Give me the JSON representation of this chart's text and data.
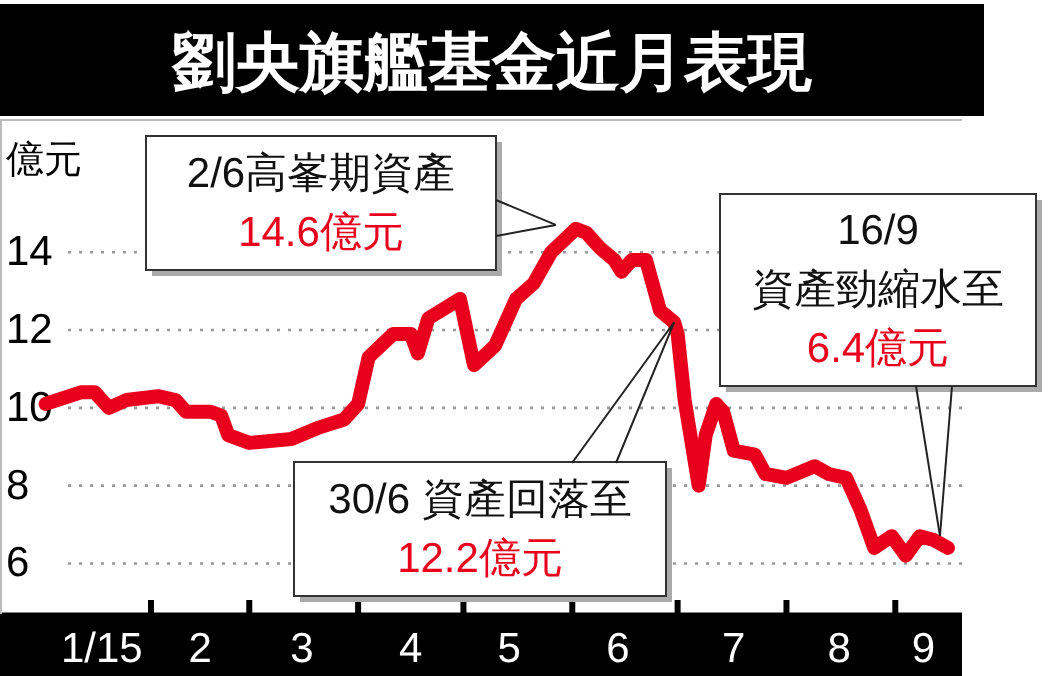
{
  "chart_data": {
    "type": "line",
    "title": "劉央旗艦基金近月表現",
    "ylabel": "億元",
    "x": [
      "2015-01-02",
      "2015-01-12",
      "2015-01-16",
      "2015-01-20",
      "2015-01-25",
      "2015-02-03",
      "2015-02-08",
      "2015-02-11",
      "2015-02-18",
      "2015-02-21",
      "2015-02-23",
      "2015-03-01",
      "2015-03-13",
      "2015-03-21",
      "2015-03-28",
      "2015-04-01",
      "2015-04-04",
      "2015-04-11",
      "2015-04-16",
      "2015-04-18",
      "2015-04-21",
      "2015-04-30",
      "2015-05-04",
      "2015-05-10",
      "2015-05-16",
      "2015-05-21",
      "2015-05-26",
      "2015-06-02",
      "2015-06-05",
      "2015-06-09",
      "2015-06-13",
      "2015-06-15",
      "2015-06-18",
      "2015-06-22",
      "2015-06-26",
      "2015-06-30",
      "2015-07-01",
      "2015-07-03",
      "2015-07-07",
      "2015-07-09",
      "2015-07-12",
      "2015-07-14",
      "2015-07-17",
      "2015-07-23",
      "2015-07-26",
      "2015-08-01",
      "2015-08-09",
      "2015-08-13",
      "2015-08-18",
      "2015-08-22",
      "2015-08-26",
      "2015-08-31",
      "2015-09-04",
      "2015-09-08",
      "2015-09-12",
      "2015-09-16"
    ],
    "series": [
      {
        "color": "#e8001c",
        "values": [
          10.1,
          10.4,
          10.4,
          10.0,
          10.2,
          10.3,
          10.2,
          9.9,
          9.9,
          9.8,
          9.3,
          9.1,
          9.2,
          9.5,
          9.7,
          10.1,
          11.3,
          11.9,
          11.9,
          11.4,
          12.3,
          12.8,
          11.1,
          11.6,
          12.8,
          13.2,
          14.0,
          14.6,
          14.5,
          14.1,
          13.8,
          13.5,
          13.8,
          13.8,
          12.5,
          12.2,
          11.9,
          10.2,
          8.0,
          9.3,
          10.1,
          9.9,
          8.9,
          8.8,
          8.3,
          8.2,
          8.5,
          8.3,
          8.2,
          7.4,
          6.4,
          6.7,
          6.2,
          6.7,
          6.6,
          6.4
        ]
      }
    ],
    "xlim": [
      "2014-12-20",
      "2015-09-20"
    ],
    "ylim": [
      4.7,
      17.4
    ],
    "xticks": [
      {
        "value": "2015-01-18",
        "label": "1/15"
      },
      {
        "value": "2015-02-01",
        "label": null
      },
      {
        "value": "2015-02-15",
        "label": "2"
      },
      {
        "value": "2015-03-01",
        "label": null
      },
      {
        "value": "2015-03-16",
        "label": "3"
      },
      {
        "value": "2015-04-01",
        "label": null
      },
      {
        "value": "2015-04-16",
        "label": "4"
      },
      {
        "value": "2015-05-01",
        "label": null
      },
      {
        "value": "2015-05-14",
        "label": "5"
      },
      {
        "value": "2015-06-01",
        "label": null
      },
      {
        "value": "2015-06-14",
        "label": "6"
      },
      {
        "value": "2015-07-01",
        "label": null
      },
      {
        "value": "2015-07-17",
        "label": "7"
      },
      {
        "value": "2015-08-01",
        "label": null
      },
      {
        "value": "2015-08-16",
        "label": "8"
      },
      {
        "value": "2015-09-01",
        "label": null
      },
      {
        "value": "2015-09-09",
        "label": "9"
      }
    ],
    "yticks": [
      6,
      8,
      10,
      12,
      14
    ],
    "grid": "y",
    "annotations": [
      {
        "text": "2/6高峯期資產\n14.6億元",
        "x": "2015-06-02",
        "y": 14.6
      },
      {
        "text": "30/6 資產回落至\n12.2億元",
        "x": "2015-06-30",
        "y": 12.2
      },
      {
        "text": "16/9\n資產勁縮水至\n6.4億元",
        "x": "2015-09-16",
        "y": 6.4
      }
    ]
  }
}
